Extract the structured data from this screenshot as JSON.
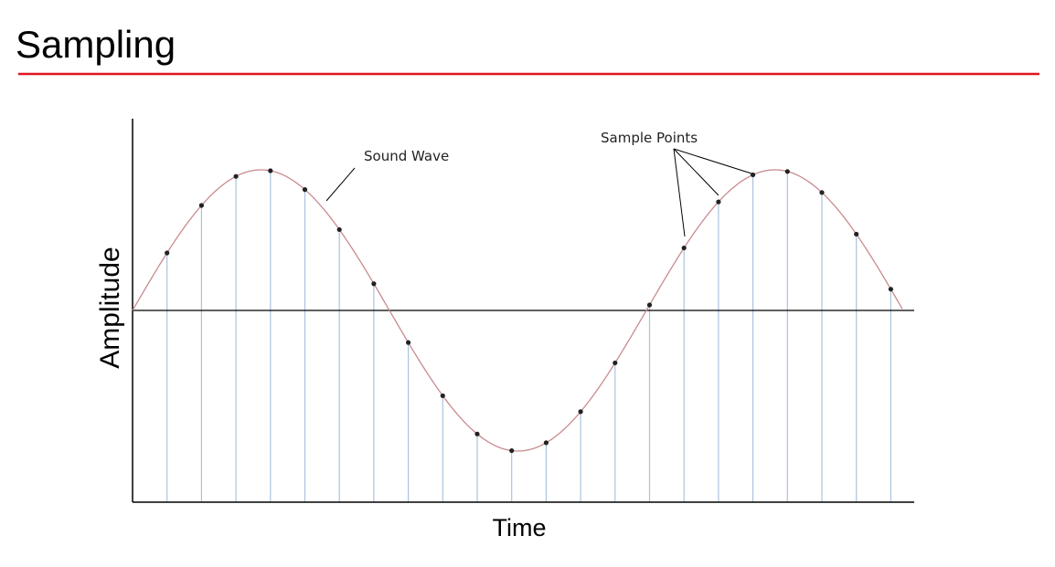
{
  "title": "Sampling",
  "labels": {
    "wave": "Sound Wave",
    "samples": "Sample Points",
    "y_axis": "Amplitude",
    "x_axis": "Time"
  }
}
